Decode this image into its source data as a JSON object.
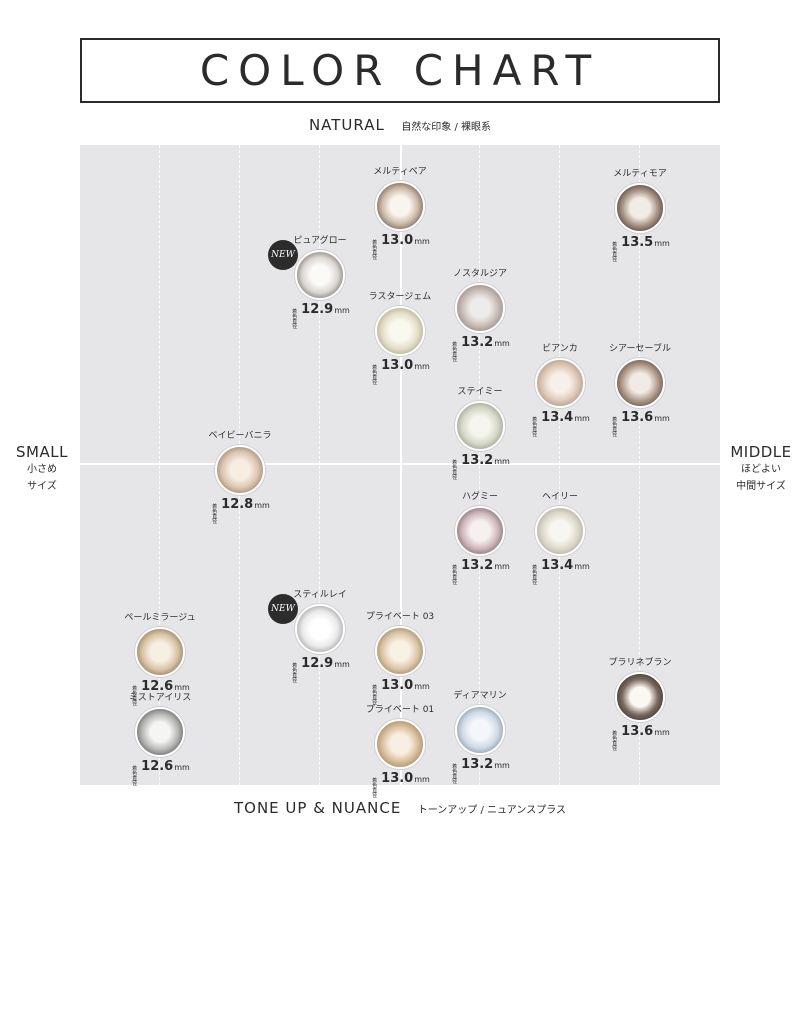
{
  "title": "COLOR CHART",
  "axes": {
    "top_main": "NATURAL",
    "top_sub": "自然な印象 / 裸眼系",
    "bottom_main": "TONE UP & NUANCE",
    "bottom_sub": "トーンアップ / ニュアンスプラス",
    "left_main": "SMALL",
    "left_sub1": "小さめ",
    "left_sub2": "サイズ",
    "right_main": "MIDDLE",
    "right_sub1": "ほどよい",
    "right_sub2": "中間サイズ"
  },
  "size_tag": "着色直径",
  "unit": "mm",
  "new_label": "NEW",
  "lenses": [
    {
      "name": "メルティベア",
      "size": "13.0",
      "new": false,
      "colors": [
        "#faf4ee",
        "#cdbba9",
        "#5e4a3f"
      ]
    },
    {
      "name": "メルティモア",
      "size": "13.5",
      "new": false,
      "colors": [
        "#f3ece6",
        "#a89283",
        "#3d302b"
      ]
    },
    {
      "name": "ピュアグロー",
      "size": "12.9",
      "new": true,
      "colors": [
        "#fafaf9",
        "#dad6d2",
        "#6a625f"
      ]
    },
    {
      "name": "ノスタルジア",
      "size": "13.2",
      "new": false,
      "colors": [
        "#efebea",
        "#c8bdb7",
        "#8d7e77"
      ]
    },
    {
      "name": "ラスタージェム",
      "size": "13.0",
      "new": false,
      "colors": [
        "#fbf9ef",
        "#e5dfc8",
        "#a39c86"
      ]
    },
    {
      "name": "ビアンカ",
      "size": "13.4",
      "new": false,
      "colors": [
        "#f8efe8",
        "#ddc8b8",
        "#a38a79"
      ]
    },
    {
      "name": "シアーセーブル",
      "size": "13.6",
      "new": false,
      "colors": [
        "#f2ebe5",
        "#b19c8c",
        "#4f4038"
      ]
    },
    {
      "name": "ステイミー",
      "size": "13.2",
      "new": false,
      "colors": [
        "#f6f6ef",
        "#d6d8c8",
        "#8e917f"
      ]
    },
    {
      "name": "ベイビーバニラ",
      "size": "12.8",
      "new": false,
      "colors": [
        "#f6ede3",
        "#dbc6b1",
        "#8b7562"
      ]
    },
    {
      "name": "ハグミー",
      "size": "13.2",
      "new": false,
      "colors": [
        "#f7f0f1",
        "#cfb8bb",
        "#6c5a5e"
      ]
    },
    {
      "name": "ヘイリー",
      "size": "13.4",
      "new": false,
      "colors": [
        "#f8f6f0",
        "#ddd9cb",
        "#a8a394"
      ]
    },
    {
      "name": "ペールミラージュ",
      "size": "12.6",
      "new": false,
      "colors": [
        "#f7efe2",
        "#d9c3a3",
        "#7b6953"
      ]
    },
    {
      "name": "スティルレイ",
      "size": "12.9",
      "new": true,
      "colors": [
        "#ffffff",
        "#e9e9e9",
        "#8f8f8f"
      ]
    },
    {
      "name": "プライベート 03",
      "size": "13.0",
      "new": false,
      "colors": [
        "#f8f1e4",
        "#dcc7a7",
        "#8e7a5e"
      ]
    },
    {
      "name": "プラリネブラン",
      "size": "13.6",
      "new": false,
      "colors": [
        "#fbf7f2",
        "#7a6b60",
        "#2e2622"
      ]
    },
    {
      "name": "ミストアイリス",
      "size": "12.6",
      "new": false,
      "colors": [
        "#f5f5f4",
        "#b8b8b6",
        "#4f4f4d"
      ]
    },
    {
      "name": "プライベート 01",
      "size": "13.0",
      "new": false,
      "colors": [
        "#f8efe2",
        "#d9be9b",
        "#9a7d5f"
      ]
    },
    {
      "name": "ディアマリン",
      "size": "13.2",
      "new": false,
      "colors": [
        "#f4f7fa",
        "#cfdbe6",
        "#7a8a99"
      ]
    }
  ]
}
